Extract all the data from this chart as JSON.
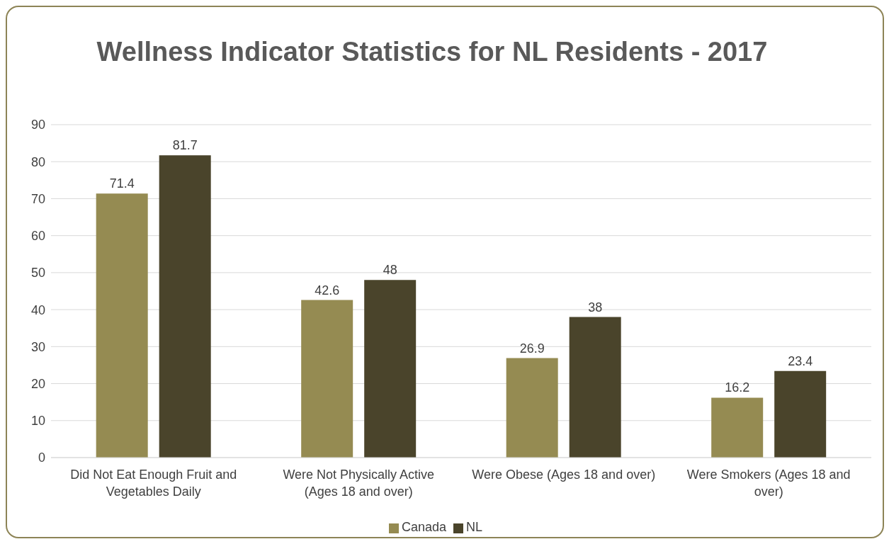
{
  "chart_data": {
    "type": "bar",
    "title": "Wellness Indicator Statistics for NL Residents - 2017",
    "categories": [
      "Did Not Eat Enough Fruit and Vegetables Daily",
      "Were Not Physically Active (Ages 18 and over)",
      "Were Obese (Ages 18 and over)",
      "Were Smokers (Ages 18 and over)"
    ],
    "series": [
      {
        "name": "Canada",
        "color": "#958b52",
        "values": [
          71.4,
          42.6,
          26.9,
          16.2
        ]
      },
      {
        "name": "NL",
        "color": "#4a442b",
        "values": [
          81.7,
          48,
          38,
          23.4
        ]
      }
    ],
    "ylim": [
      0,
      90
    ],
    "yticks": [
      0,
      10,
      20,
      30,
      40,
      50,
      60,
      70,
      80,
      90
    ],
    "grid": "y",
    "legend": "bottom",
    "data_labels": true
  }
}
